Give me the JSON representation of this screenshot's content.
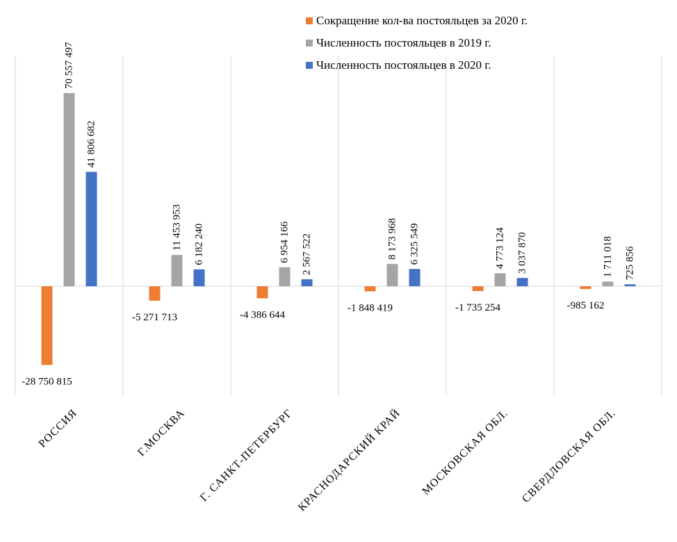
{
  "chart_data": {
    "type": "bar",
    "categories": [
      "РОССИЯ",
      "Г.МОСКВА",
      "Г. САНКТ-ПЕТЕРБУРГ",
      "КРАСНОДАРСКИЙ КРАЙ",
      "МОСКОВСКАЯ ОБЛ.",
      "СВЕРДЛОВСКАЯ ОБЛ."
    ],
    "series": [
      {
        "name": "Сокращение кол-ва постояльцев за 2020 г.",
        "color": "#ED7D31",
        "values": [
          -28750815,
          -5271713,
          -4386644,
          -1848419,
          -1735254,
          -985162
        ],
        "labels": [
          "-28 750 815",
          "-5 271 713",
          "-4 386 644",
          "-1 848 419",
          "-1 735 254",
          "-985 162"
        ]
      },
      {
        "name": "Численность постояльцев в 2019 г.",
        "color": "#A5A5A5",
        "values": [
          70557497,
          11453953,
          6954166,
          8173968,
          4773124,
          1711018
        ],
        "labels": [
          "70 557 497",
          "11 453 953",
          "6 954 166",
          "8 173 968",
          "4 773 124",
          "1 711 018"
        ]
      },
      {
        "name": "Численность постояльцев в 2020 г.",
        "color": "#4472C4",
        "values": [
          41806682,
          6182240,
          2567522,
          6325549,
          3037870,
          725856
        ],
        "labels": [
          "41 806 682",
          "6 182 240",
          "2 567 522",
          "6 325 549",
          "3 037 870",
          "725 856"
        ]
      }
    ],
    "grid": "vertical category separators",
    "legend_position": "top-right"
  }
}
